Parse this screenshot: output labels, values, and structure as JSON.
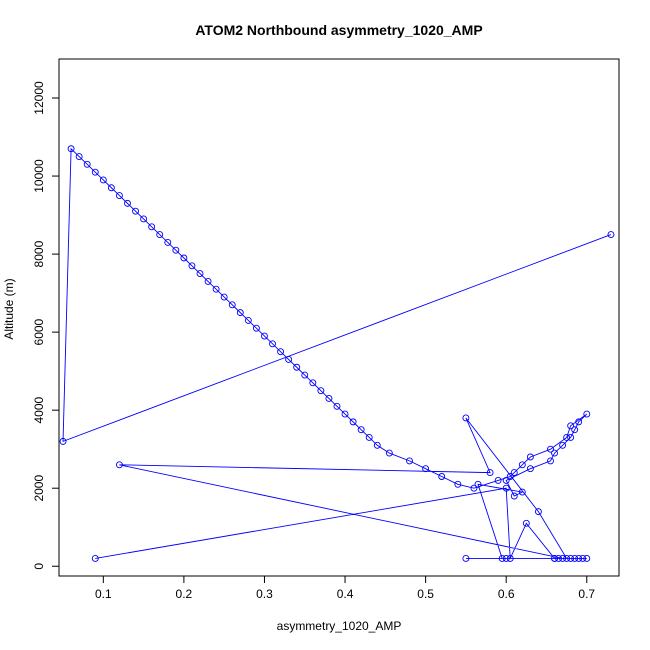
{
  "chart_data": {
    "type": "line",
    "title": "ATOM2 Northbound asymmetry_1020_AMP",
    "xlabel": "asymmetry_1020_AMP",
    "ylabel": "Altitude (m)",
    "xlim": [
      0.045,
      0.74
    ],
    "ylim": [
      -250,
      13000
    ],
    "x_ticks": [
      0.1,
      0.2,
      0.3,
      0.4,
      0.5,
      0.6,
      0.7
    ],
    "x_tick_labels": [
      "0.1",
      "0.2",
      "0.3",
      "0.4",
      "0.5",
      "0.6",
      "0.7"
    ],
    "y_ticks": [
      0,
      2000,
      4000,
      6000,
      8000,
      10000,
      12000
    ],
    "y_tick_labels": [
      "0",
      "2000",
      "4000",
      "6000",
      "8000",
      "10000",
      "12000"
    ],
    "grid": false,
    "legend": "none",
    "line_color": "#0000ff",
    "marker": "open-circle",
    "series": [
      {
        "x": [
          0.09,
          0.6,
          0.605,
          0.625,
          0.66,
          0.67,
          0.12,
          0.58,
          0.55,
          0.64,
          0.675,
          0.665,
          0.68,
          0.69,
          0.695,
          0.685,
          0.7,
          0.66,
          0.55,
          0.6,
          0.595,
          0.565,
          0.62,
          0.61,
          0.6,
          0.63,
          0.655,
          0.66,
          0.67,
          0.68,
          0.685,
          0.69,
          0.7,
          0.68,
          0.675,
          0.655,
          0.63,
          0.62,
          0.61,
          0.605,
          0.59,
          0.56,
          0.54,
          0.52,
          0.5,
          0.48,
          0.455,
          0.44,
          0.43,
          0.42,
          0.41,
          0.4,
          0.39,
          0.38,
          0.37,
          0.36,
          0.35,
          0.34,
          0.33,
          0.32,
          0.31,
          0.3,
          0.29,
          0.28,
          0.27,
          0.26,
          0.25,
          0.24,
          0.23,
          0.22,
          0.21,
          0.2,
          0.19,
          0.18,
          0.17,
          0.16,
          0.15,
          0.14,
          0.13,
          0.12,
          0.11,
          0.1,
          0.09,
          0.08,
          0.07,
          0.06,
          0.05,
          0.73
        ],
        "y": [
          200,
          2000,
          200,
          1100,
          200,
          200,
          2600,
          2400,
          3800,
          1400,
          200,
          200,
          200,
          200,
          200,
          200,
          200,
          200,
          200,
          200,
          200,
          2100,
          1900,
          1800,
          2200,
          2500,
          2700,
          2900,
          3100,
          3300,
          3500,
          3700,
          3900,
          3600,
          3300,
          3000,
          2800,
          2600,
          2400,
          2300,
          2200,
          2000,
          2100,
          2300,
          2500,
          2700,
          2900,
          3100,
          3300,
          3500,
          3700,
          3900,
          4100,
          4300,
          4500,
          4700,
          4900,
          5100,
          5300,
          5500,
          5700,
          5900,
          6100,
          6300,
          6500,
          6700,
          6900,
          7100,
          7300,
          7500,
          7700,
          7900,
          8100,
          8300,
          8500,
          8700,
          8900,
          9100,
          9300,
          9500,
          9700,
          9900,
          10100,
          10300,
          10500,
          10700,
          3200,
          8500
        ]
      }
    ]
  }
}
